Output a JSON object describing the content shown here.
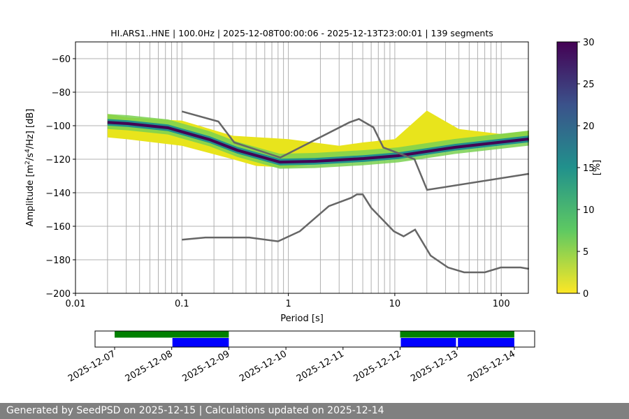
{
  "chart_data": [
    {
      "type": "heatmap",
      "title": "HI.ARS1..HNE | 100.0Hz | 2025-12-08T00:00:06 - 2025-12-13T23:00:01 | 139 segments",
      "xlabel": "Period [s]",
      "ylabel": "Amplitude [m²/s⁴/Hz] [dB]",
      "xscale": "log",
      "xlim": [
        0.01,
        182
      ],
      "ylim": [
        -200,
        -50
      ],
      "xticks": [
        "0.01",
        "0.1",
        "1",
        "10",
        "100"
      ],
      "yticks": [
        "−60",
        "−80",
        "−100",
        "−120",
        "−140",
        "−160",
        "−180",
        "−200"
      ],
      "grid": true,
      "colorbar": {
        "label": "[%]",
        "range": [
          0,
          30
        ],
        "ticks": [
          "0",
          "5",
          "10",
          "15",
          "20",
          "25",
          "30"
        ],
        "colormap": "viridis_r"
      },
      "pdf_mode": {
        "period": [
          0.02,
          0.031,
          0.074,
          0.182,
          0.33,
          0.83,
          1.77,
          5.1,
          10.8,
          36.5,
          182
        ],
        "db": [
          -98,
          -98.75,
          -101.25,
          -108.3,
          -114.6,
          -121.7,
          -121.25,
          -119.6,
          -117.9,
          -112.9,
          -107.9
        ]
      },
      "pdf_envelope_upper": {
        "period": [
          0.02,
          0.03,
          0.1,
          0.3,
          1,
          3,
          5,
          10,
          20,
          40,
          100,
          182
        ],
        "db": [
          -93,
          -95,
          -97,
          -106,
          -108,
          -112,
          -110,
          -108,
          -91,
          -102,
          -105,
          -103
        ]
      },
      "pdf_envelope_lower": {
        "period": [
          0.02,
          0.03,
          0.1,
          0.3,
          0.5,
          1,
          3,
          10,
          30,
          100,
          182
        ],
        "db": [
          -107,
          -108,
          -112,
          -120,
          -124,
          -125,
          -121,
          -119,
          -114,
          -110,
          -109
        ]
      },
      "noise_models": [
        {
          "period": [
            0.1,
            0.22,
            0.31,
            0.84,
            3.75,
            4.6,
            6.3,
            7.8,
            15.3,
            20.1,
            182
          ],
          "db": [
            -91.5,
            -97.5,
            -110,
            -119,
            -98,
            -96,
            -101,
            -113,
            -120,
            -138.3,
            -128.7
          ]
        },
        {
          "period": [
            0.1,
            0.166,
            0.43,
            0.8,
            1.28,
            2.4,
            3.9,
            4.4,
            5,
            6,
            9.8,
            12.1,
            15.5,
            21.7,
            31.6,
            44.8,
            70,
            99,
            152,
            182
          ],
          "db": [
            -168,
            -166.7,
            -166.7,
            -169,
            -163,
            -148,
            -143,
            -141,
            -141,
            -149,
            -163,
            -166,
            -162,
            -177.5,
            -184.6,
            -187.5,
            -187.5,
            -184.6,
            -184.6,
            -185.4
          ]
        }
      ],
      "colors": {
        "noise_model": "#666666",
        "grid": "#b0b0b0"
      }
    },
    {
      "type": "timeline",
      "xticks": [
        "2025-12-07",
        "2025-12-08",
        "2025-12-09",
        "2025-12-10",
        "2025-12-11",
        "2025-12-12",
        "2025-12-13",
        "2025-12-14"
      ],
      "xlim": [
        "2025-12-06T16:00",
        "2025-12-14T08:40"
      ],
      "available_data": [
        [
          "2025-12-07",
          "2025-12-09"
        ],
        [
          "2025-12-12",
          "2025-12-14"
        ]
      ],
      "processed_segments": [
        [
          "2025-12-08",
          "2025-12-09"
        ],
        [
          "2025-12-12",
          "2025-12-12T23:30"
        ],
        [
          "2025-12-13",
          "2025-12-14"
        ]
      ],
      "colors": {
        "available_data": "#008000",
        "processed_segments": "#0000ff"
      }
    }
  ],
  "footer": "Generated by SeedPSD on 2025-12-15 | Calculations updated on 2025-12-14"
}
